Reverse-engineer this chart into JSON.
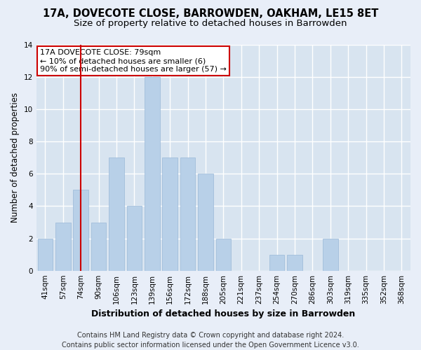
{
  "title1": "17A, DOVECOTE CLOSE, BARROWDEN, OAKHAM, LE15 8ET",
  "title2": "Size of property relative to detached houses in Barrowden",
  "xlabel": "Distribution of detached houses by size in Barrowden",
  "ylabel": "Number of detached properties",
  "categories": [
    "41sqm",
    "57sqm",
    "74sqm",
    "90sqm",
    "106sqm",
    "123sqm",
    "139sqm",
    "156sqm",
    "172sqm",
    "188sqm",
    "205sqm",
    "221sqm",
    "237sqm",
    "254sqm",
    "270sqm",
    "286sqm",
    "303sqm",
    "319sqm",
    "335sqm",
    "352sqm",
    "368sqm"
  ],
  "values": [
    2,
    3,
    5,
    3,
    7,
    4,
    12,
    7,
    7,
    6,
    2,
    0,
    0,
    1,
    1,
    0,
    2,
    0,
    0,
    0,
    0
  ],
  "bar_color": "#b8d0e8",
  "bar_edge_color": "#9ab8d8",
  "vline_x": 2,
  "vline_color": "#cc0000",
  "annotation_text": "17A DOVECOTE CLOSE: 79sqm\n← 10% of detached houses are smaller (6)\n90% of semi-detached houses are larger (57) →",
  "annotation_box_color": "white",
  "annotation_box_edge": "#cc0000",
  "ylim": [
    0,
    14
  ],
  "yticks": [
    0,
    2,
    4,
    6,
    8,
    10,
    12,
    14
  ],
  "footnote": "Contains HM Land Registry data © Crown copyright and database right 2024.\nContains public sector information licensed under the Open Government Licence v3.0.",
  "bg_color": "#e8eef8",
  "plot_bg_color": "#d8e4f0",
  "grid_color": "#ffffff",
  "title1_fontsize": 10.5,
  "title2_fontsize": 9.5,
  "xlabel_fontsize": 9,
  "ylabel_fontsize": 8.5,
  "tick_fontsize": 7.5,
  "footnote_fontsize": 7,
  "annotation_fontsize": 8
}
